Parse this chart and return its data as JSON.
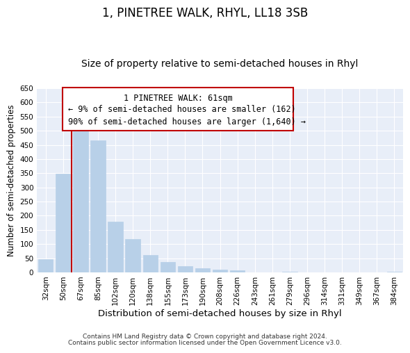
{
  "title": "1, PINETREE WALK, RHYL, LL18 3SB",
  "subtitle": "Size of property relative to semi-detached houses in Rhyl",
  "xlabel": "Distribution of semi-detached houses by size in Rhyl",
  "ylabel": "Number of semi-detached properties",
  "bin_labels": [
    "32sqm",
    "50sqm",
    "67sqm",
    "85sqm",
    "102sqm",
    "120sqm",
    "138sqm",
    "155sqm",
    "173sqm",
    "190sqm",
    "208sqm",
    "226sqm",
    "243sqm",
    "261sqm",
    "279sqm",
    "296sqm",
    "314sqm",
    "331sqm",
    "349sqm",
    "367sqm",
    "384sqm"
  ],
  "bar_values": [
    47,
    348,
    535,
    465,
    178,
    118,
    62,
    36,
    22,
    15,
    10,
    8,
    0,
    0,
    3,
    0,
    0,
    0,
    0,
    0,
    3
  ],
  "bar_color": "#b8d0e8",
  "highlight_color": "#c00000",
  "annotation_title": "1 PINETREE WALK: 61sqm",
  "annotation_line1": "← 9% of semi-detached houses are smaller (162)",
  "annotation_line2": "90% of semi-detached houses are larger (1,640) →",
  "annotation_box_facecolor": "#ffffff",
  "annotation_box_edgecolor": "#c00000",
  "ylim": [
    0,
    650
  ],
  "yticks": [
    0,
    50,
    100,
    150,
    200,
    250,
    300,
    350,
    400,
    450,
    500,
    550,
    600,
    650
  ],
  "footer_line1": "Contains HM Land Registry data © Crown copyright and database right 2024.",
  "footer_line2": "Contains public sector information licensed under the Open Government Licence v3.0.",
  "title_fontsize": 12,
  "subtitle_fontsize": 10,
  "xlabel_fontsize": 9.5,
  "ylabel_fontsize": 8.5,
  "tick_fontsize": 7.5,
  "footer_fontsize": 6.5,
  "annotation_fontsize": 8.5,
  "figsize": [
    6.0,
    5.0
  ],
  "dpi": 100,
  "bg_color": "#e8eef8",
  "grid_color": "#ffffff"
}
